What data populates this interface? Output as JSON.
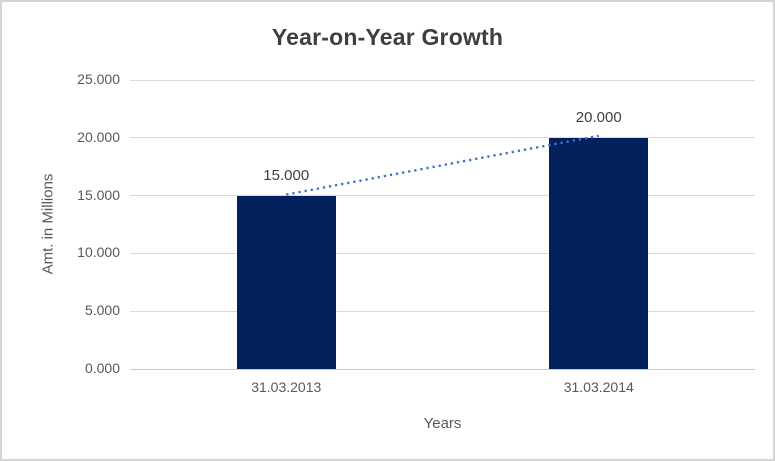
{
  "chart_data": {
    "type": "bar",
    "title": "Year-on-Year Growth",
    "xlabel": "Years",
    "ylabel": "Amt. in Millions",
    "categories": [
      "31.03.2013",
      "31.03.2014"
    ],
    "values": [
      15,
      20
    ],
    "data_labels": [
      "15.000",
      "20.000"
    ],
    "ylim": [
      0,
      25
    ],
    "yticks": [
      0,
      5,
      10,
      15,
      20,
      25
    ],
    "ytick_labels": [
      "0.000",
      "5.000",
      "10.000",
      "15.000",
      "20.000",
      "25.000"
    ],
    "grid": true,
    "legend": "none",
    "trendline": {
      "show": true,
      "style": "dotted",
      "connects": "bar-top-centers"
    },
    "colors": {
      "bar": "#02215C",
      "trendline": "#4472C4",
      "gridline": "#D9D9D9",
      "axis_line": "#C9C9C9",
      "title_text": "#3F3F3F",
      "tick_text": "#595959",
      "data_label_text": "#404040",
      "frame_border": "#D6D4D4",
      "background": "#FFFFFF"
    }
  }
}
